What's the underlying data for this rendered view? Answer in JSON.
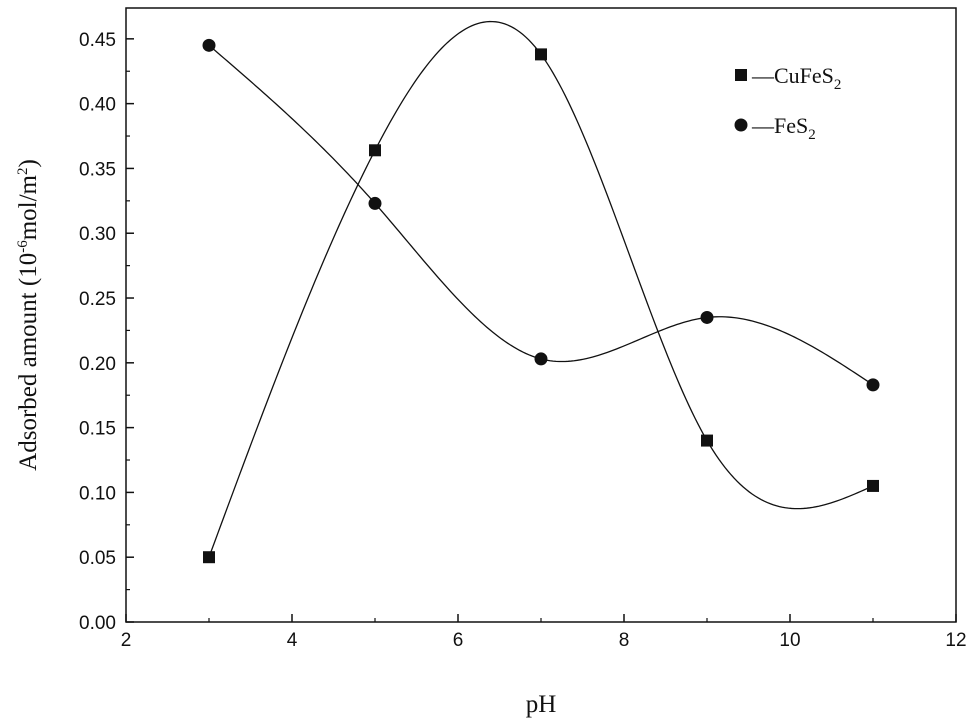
{
  "chart_data": {
    "type": "line",
    "title": "",
    "xlabel": "pH",
    "ylabel": {
      "main": "Adsorbed amount (10",
      "exp1": "-6",
      "mid": "mol/m",
      "exp2": "2",
      "end": ")"
    },
    "xlim": [
      2,
      12
    ],
    "ylim": [
      0.0,
      0.45
    ],
    "xticks": [
      2,
      4,
      6,
      8,
      10,
      12
    ],
    "yticks": [
      0.0,
      0.05,
      0.1,
      0.15,
      0.2,
      0.25,
      0.3,
      0.35,
      0.4,
      0.45
    ],
    "xtick_labels": [
      "2",
      "4",
      "6",
      "8",
      "10",
      "12"
    ],
    "ytick_labels": [
      "0.00",
      "0.05",
      "0.10",
      "0.15",
      "0.20",
      "0.25",
      "0.30",
      "0.35",
      "0.40",
      "0.45"
    ],
    "grid": false,
    "legend_position": "top-right",
    "series": [
      {
        "name": "CuFeS2",
        "legend_label": {
          "prefix": "—CuFeS",
          "sub": "2"
        },
        "marker": "square",
        "color": "#111111",
        "x": [
          3,
          5,
          7,
          9,
          11
        ],
        "y": [
          0.05,
          0.364,
          0.438,
          0.14,
          0.105
        ]
      },
      {
        "name": "FeS2",
        "legend_label": {
          "prefix": "—FeS",
          "sub": "2"
        },
        "marker": "circle",
        "color": "#111111",
        "x": [
          3,
          5,
          7,
          9,
          11
        ],
        "y": [
          0.445,
          0.323,
          0.203,
          0.235,
          0.183
        ]
      }
    ]
  }
}
